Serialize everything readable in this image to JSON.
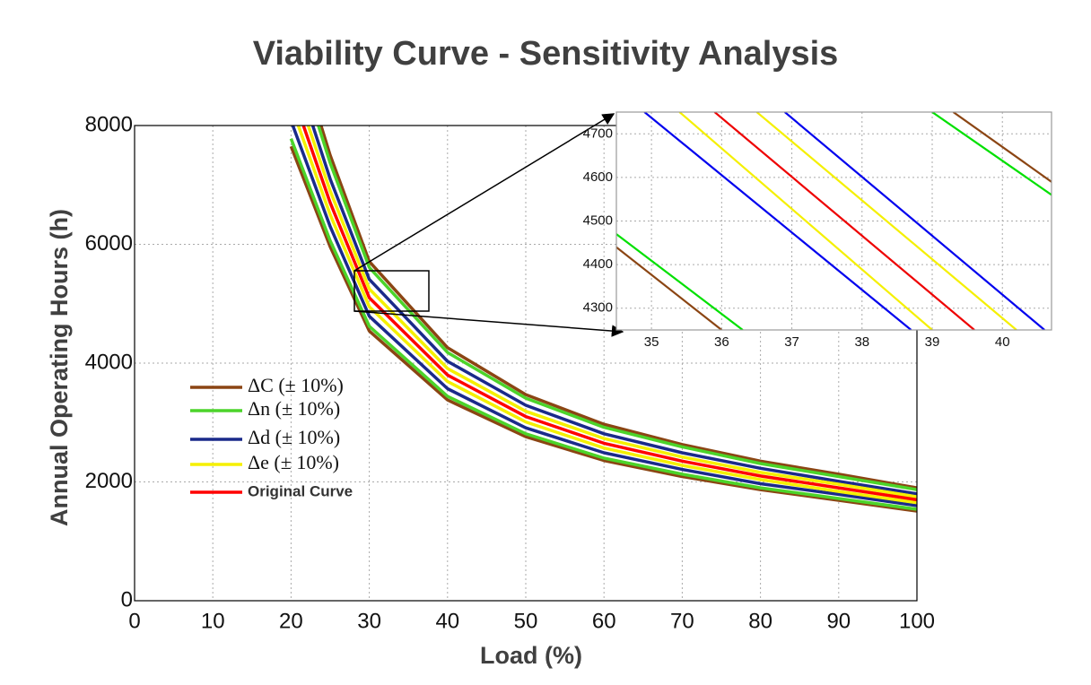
{
  "chart_data": [
    {
      "type": "line",
      "title": "Viability Curve - Sensitivity Analysis",
      "x_label": "Load (%)",
      "y_label": "Annual Operating Hours (h)",
      "xlim": [
        0,
        100
      ],
      "ylim": [
        0,
        8000
      ],
      "xticks": [
        0,
        10,
        20,
        30,
        40,
        50,
        60,
        70,
        80,
        90,
        100
      ],
      "yticks": [
        0,
        2000,
        4000,
        6000,
        8000
      ],
      "grid": true,
      "x": [
        20,
        25,
        30,
        40,
        50,
        60,
        70,
        80,
        90,
        100
      ],
      "series": [
        {
          "name": "ΔC (± 10%)",
          "color": "#8b4513",
          "low": [
            7650,
            5960,
            4540,
            3380,
            2760,
            2360,
            2090,
            1870,
            1690,
            1510
          ],
          "high": [
            9630,
            7500,
            5710,
            4260,
            3470,
            2970,
            2630,
            2350,
            2130,
            1900
          ]
        },
        {
          "name": "Δn (± 10%)",
          "color": "#4cd42a",
          "low": [
            7780,
            6060,
            4620,
            3440,
            2810,
            2400,
            2130,
            1900,
            1720,
            1540
          ],
          "high": [
            9460,
            7370,
            5610,
            4180,
            3410,
            2920,
            2590,
            2310,
            2090,
            1870
          ]
        },
        {
          "name": "Δd (± 10%)",
          "color": "#1a2a8a",
          "low": [
            8080,
            6300,
            4790,
            3570,
            2910,
            2490,
            2210,
            1970,
            1790,
            1600
          ],
          "high": [
            9120,
            7100,
            5410,
            4030,
            3290,
            2810,
            2490,
            2230,
            2010,
            1800
          ]
        },
        {
          "name": "Δe (± 10%)",
          "color": "#f5f000",
          "low": [
            8340,
            6500,
            4950,
            3690,
            3010,
            2570,
            2280,
            2040,
            1840,
            1650
          ],
          "high": [
            8860,
            6900,
            5250,
            3910,
            3190,
            2730,
            2420,
            2160,
            1960,
            1750
          ]
        },
        {
          "name": "Original Curve",
          "color": "#ff0000",
          "values": [
            8600,
            6700,
            5100,
            3800,
            3100,
            2650,
            2350,
            2100,
            1900,
            1700
          ]
        }
      ]
    },
    {
      "type": "line",
      "xlim": [
        34.5,
        40.7
      ],
      "ylim": [
        4250,
        4750
      ],
      "xticks": [
        35,
        36,
        37,
        38,
        39,
        40
      ],
      "yticks": [
        4300,
        4400,
        4500,
        4600,
        4700
      ],
      "grid": true,
      "series": [
        {
          "color": "#8b4513",
          "x": [
            34.5,
            36.0
          ],
          "values": [
            4440,
            4250
          ]
        },
        {
          "color": "#00e000",
          "x": [
            34.5,
            36.3
          ],
          "values": [
            4470,
            4250
          ]
        },
        {
          "color": "#0000ee",
          "x": [
            34.9,
            38.7
          ],
          "values": [
            4750,
            4250
          ]
        },
        {
          "color": "#f5f000",
          "x": [
            35.4,
            39.0
          ],
          "values": [
            4750,
            4250
          ]
        },
        {
          "color": "#ee0000",
          "x": [
            35.9,
            39.6
          ],
          "values": [
            4750,
            4250
          ]
        },
        {
          "color": "#f5f000",
          "x": [
            36.5,
            40.2
          ],
          "values": [
            4750,
            4250
          ]
        },
        {
          "color": "#0000ee",
          "x": [
            36.9,
            40.6
          ],
          "values": [
            4750,
            4250
          ]
        },
        {
          "color": "#00e000",
          "x": [
            39.0,
            40.7
          ],
          "values": [
            4750,
            4560
          ]
        },
        {
          "color": "#8b4513",
          "x": [
            39.3,
            40.7
          ],
          "values": [
            4750,
            4590
          ]
        }
      ]
    }
  ]
}
